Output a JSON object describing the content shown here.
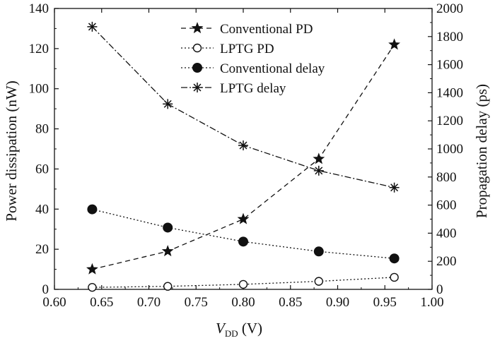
{
  "chart_data": {
    "type": "line",
    "title": "",
    "x": [
      0.64,
      0.72,
      0.8,
      0.88,
      0.96
    ],
    "xlabel_main": "V",
    "xlabel_sub": "DD",
    "xlabel_unit": " (V)",
    "ylabel_left": "Power dissipation (nW)",
    "ylabel_right": "Propagation delay (ps)",
    "xlim": [
      0.6,
      1.0
    ],
    "ylim_left": [
      0,
      140
    ],
    "ylim_right": [
      0,
      2000
    ],
    "x_ticks": [
      0.6,
      0.65,
      0.7,
      0.75,
      0.8,
      0.85,
      0.9,
      0.95,
      1.0
    ],
    "x_tick_labels": [
      "0.60",
      "0.65",
      "0.70",
      "0.75",
      "0.80",
      "0.85",
      "0.90",
      "0.95",
      "1.00"
    ],
    "y_left_ticks": [
      0,
      20,
      40,
      60,
      80,
      100,
      120,
      140
    ],
    "y_left_tick_labels": [
      "0",
      "20",
      "40",
      "60",
      "80",
      "100",
      "120",
      "140"
    ],
    "y_right_ticks": [
      0,
      200,
      400,
      600,
      800,
      1000,
      1200,
      1400,
      1600,
      1800,
      2000
    ],
    "y_right_tick_labels": [
      "0",
      "200",
      "400",
      "600",
      "800",
      "1000",
      "1200",
      "1400",
      "1600",
      "1800",
      "2000"
    ],
    "grid": false,
    "legend_position": "top-center",
    "series": [
      {
        "name": "Conventional PD",
        "axis": "left",
        "marker": "star",
        "line": "dashed",
        "values": [
          10,
          19,
          35,
          65,
          122
        ]
      },
      {
        "name": "LPTG PD",
        "axis": "left",
        "marker": "open-circle",
        "line": "dotted",
        "values": [
          1,
          1.5,
          2.5,
          4,
          6
        ]
      },
      {
        "name": "Conventional delay",
        "axis": "right",
        "marker": "filled-circle",
        "line": "dotted",
        "values": [
          570,
          440,
          340,
          270,
          220
        ]
      },
      {
        "name": "LPTG delay",
        "axis": "right",
        "marker": "asterisk",
        "line": "dash-dot",
        "values": [
          1870,
          1320,
          1025,
          845,
          725
        ]
      }
    ]
  }
}
